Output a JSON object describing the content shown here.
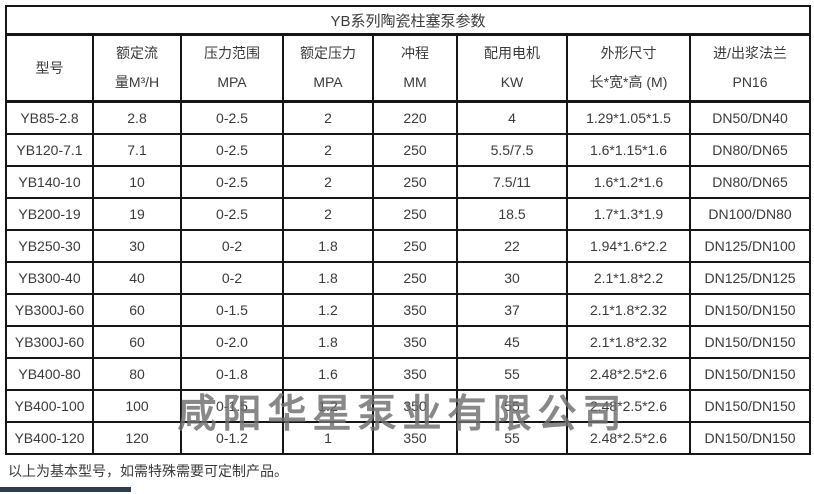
{
  "page": {
    "footer_note": "以上为基本型号，如需特殊需要可定制产品。",
    "watermark": "咸阳华星泵业有限公司"
  },
  "colors": {
    "border": "#161616",
    "text": "#3a3a3a",
    "watermark_gray": "#6f6f6f",
    "bottom_bar_navy": "#2f3d52",
    "background": "#ffffff"
  },
  "table": {
    "title": "YB系列陶瓷柱塞泵参数",
    "columns": [
      {
        "line1": "型号",
        "line2": ""
      },
      {
        "line1": "额定流",
        "line2": "量M³/H"
      },
      {
        "line1": "压力范围",
        "line2": "MPA"
      },
      {
        "line1": "额定压力",
        "line2": "MPA"
      },
      {
        "line1": "冲程",
        "line2": "MM"
      },
      {
        "line1": "配用电机",
        "line2": "KW"
      },
      {
        "line1": "外形尺寸",
        "line2": "长*宽*高 (M)"
      },
      {
        "line1": "进/出浆法兰",
        "line2": "PN16"
      }
    ],
    "rows": [
      [
        "YB85-2.8",
        "2.8",
        "0-2.5",
        "2",
        "220",
        "4",
        "1.29*1.05*1.5",
        "DN50/DN40"
      ],
      [
        "YB120-7.1",
        "7.1",
        "0-2.5",
        "2",
        "250",
        "5.5/7.5",
        "1.6*1.15*1.6",
        "DN80/DN65"
      ],
      [
        "YB140-10",
        "10",
        "0-2.5",
        "2",
        "250",
        "7.5/11",
        "1.6*1.2*1.6",
        "DN80/DN65"
      ],
      [
        "YB200-19",
        "19",
        "0-2.5",
        "2",
        "250",
        "18.5",
        "1.7*1.3*1.9",
        "DN100/DN80"
      ],
      [
        "YB250-30",
        "30",
        "0-2",
        "1.8",
        "250",
        "22",
        "1.94*1.6*2.2",
        "DN125/DN100"
      ],
      [
        "YB300-40",
        "40",
        "0-2",
        "1.8",
        "250",
        "30",
        "2.1*1.8*2.2",
        "DN125/DN125"
      ],
      [
        "YB300J-60",
        "60",
        "0-1.5",
        "1.2",
        "350",
        "37",
        "2.1*1.8*2.32",
        "DN150/DN150"
      ],
      [
        "YB300J-60",
        "60",
        "0-2.0",
        "1.8",
        "350",
        "45",
        "2.1*1.8*2.32",
        "DN150/DN150"
      ],
      [
        "YB400-80",
        "80",
        "0-1.8",
        "1.6",
        "350",
        "55",
        "2.48*2.5*2.6",
        "DN150/DN150"
      ],
      [
        "YB400-100",
        "100",
        "0-1.5",
        "1.2",
        "350",
        "55",
        "2.48*2.5*2.6",
        "DN150/DN150"
      ],
      [
        "YB400-120",
        "120",
        "0-1.2",
        "1",
        "350",
        "55",
        "2.48*2.5*2.6",
        "DN150/DN150"
      ]
    ]
  }
}
